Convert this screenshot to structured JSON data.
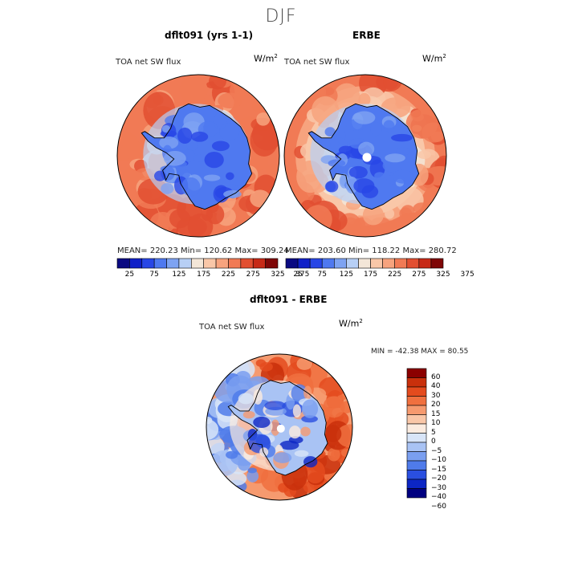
{
  "season": "DJF",
  "colors": {
    "abs_scale": [
      "#0a0a82",
      "#1020c8",
      "#2846e6",
      "#4f79f0",
      "#7ea3f2",
      "#b7cff5",
      "#f3e6d8",
      "#f9c7a8",
      "#f7a37e",
      "#f17a55",
      "#e24f31",
      "#c72a17",
      "#7f0707"
    ],
    "diff_scale": [
      "#000080",
      "#0c26c4",
      "#2a4fe0",
      "#4f7bea",
      "#7a9ff0",
      "#a9c3f4",
      "#d8e5f8",
      "#fbebdf",
      "#f9c7a8",
      "#f69a6f",
      "#f0703f",
      "#e44b1e",
      "#c9300c",
      "#8b0000"
    ]
  },
  "chart_data": [
    {
      "type": "heatmap",
      "title": "dflt091 (yrs 1-1)",
      "variable": "TOA net SW flux",
      "units": "W/m",
      "units_exp": "2",
      "stats": "MEAN= 220.23   Min= 120.62   Max= 309.24",
      "mean": 220.23,
      "min": 120.62,
      "max": 309.24,
      "colorbar_ticks": [
        "25",
        "75",
        "125",
        "175",
        "225",
        "275",
        "325",
        "375"
      ],
      "levels": [
        25,
        50,
        75,
        100,
        125,
        150,
        175,
        200,
        225,
        250,
        275,
        300,
        325,
        350,
        375
      ]
    },
    {
      "type": "heatmap",
      "title": "ERBE",
      "variable": "TOA net SW flux",
      "units": "W/m",
      "units_exp": "2",
      "stats": "MEAN= 203.60   Min= 118.22   Max= 280.72",
      "mean": 203.6,
      "min": 118.22,
      "max": 280.72,
      "colorbar_ticks": [
        "25",
        "75",
        "125",
        "175",
        "225",
        "275",
        "325",
        "375"
      ],
      "levels": [
        25,
        50,
        75,
        100,
        125,
        150,
        175,
        200,
        225,
        250,
        275,
        300,
        325,
        350,
        375
      ]
    },
    {
      "type": "heatmap",
      "title": "dflt091 - ERBE",
      "variable": "TOA net SW flux",
      "units": "W/m",
      "units_exp": "2",
      "stats": "MIN = -42.38 MAX =  80.55",
      "min": -42.38,
      "max": 80.55,
      "colorbar_ticks": [
        "60",
        "40",
        "30",
        "20",
        "15",
        "10",
        "5",
        "0",
        "−5",
        "−10",
        "−15",
        "−20",
        "−30",
        "−40",
        "−60"
      ]
    }
  ]
}
